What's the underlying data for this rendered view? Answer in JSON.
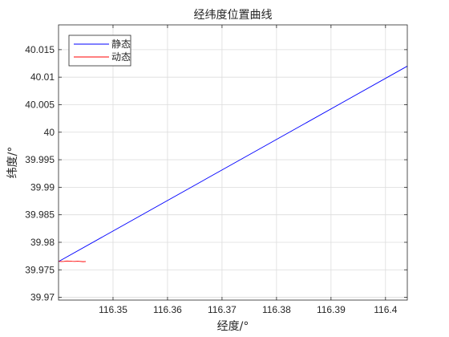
{
  "chart_data": {
    "type": "line",
    "title": "经纬度位置曲线",
    "xlabel": "经度/°",
    "ylabel": "纬度/°",
    "xlim": [
      116.34,
      116.404
    ],
    "ylim": [
      39.9695,
      40.0195
    ],
    "xticks": [
      116.35,
      116.36,
      116.37,
      116.38,
      116.39,
      116.4
    ],
    "xtick_labels": [
      "116.35",
      "116.36",
      "116.37",
      "116.38",
      "116.39",
      "116.4"
    ],
    "yticks": [
      39.97,
      39.975,
      39.98,
      39.985,
      39.99,
      39.995,
      40.0,
      40.005,
      40.01,
      40.015
    ],
    "ytick_labels": [
      "39.97",
      "39.975",
      "39.98",
      "39.985",
      "39.99",
      "39.995",
      "40",
      "40.005",
      "40.01",
      "40.015"
    ],
    "grid": true,
    "legend_position": "top-left",
    "series": [
      {
        "name": "静态",
        "color": "#0000ff",
        "x": [
          116.34,
          116.404
        ],
        "y": [
          39.9765,
          40.012
        ]
      },
      {
        "name": "动态",
        "color": "#ff0000",
        "x": [
          116.34,
          116.3405,
          116.341,
          116.3415,
          116.342,
          116.3425,
          116.343,
          116.3435,
          116.344,
          116.3445,
          116.345
        ],
        "y": [
          39.97655,
          39.9765,
          39.97652,
          39.9766,
          39.97658,
          39.97655,
          39.97653,
          39.97656,
          39.97652,
          39.97648,
          39.9765
        ]
      }
    ]
  }
}
